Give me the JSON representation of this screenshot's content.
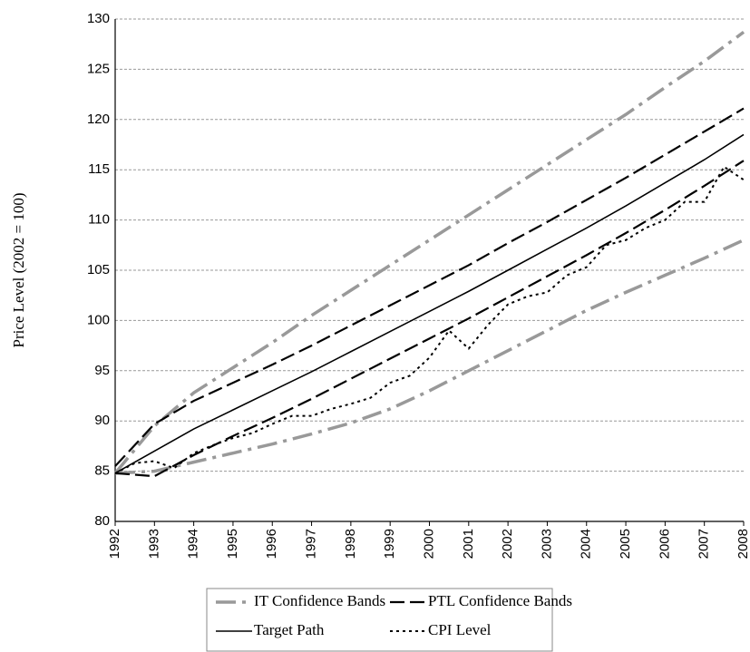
{
  "chart_data": {
    "type": "line",
    "y_label": "Price Level (2002 = 100)",
    "x": [
      1992,
      1993,
      1994,
      1995,
      1996,
      1997,
      1998,
      1999,
      2000,
      2001,
      2002,
      2003,
      2004,
      2005,
      2006,
      2007,
      2008
    ],
    "series": [
      {
        "name": "IT Confidence Bands",
        "color": "#999999",
        "style": "dash-dot",
        "upper": [
          84.8,
          89.5,
          92.8,
          95.3,
          97.8,
          100.5,
          103,
          105.5,
          108,
          110.5,
          113,
          115.5,
          118,
          120.5,
          123.2,
          125.8,
          128.7
        ],
        "lower": [
          84.8,
          85,
          85.9,
          86.8,
          87.7,
          88.7,
          89.8,
          91.2,
          93,
          95,
          97,
          99,
          101,
          102.8,
          104.5,
          106.2,
          108
        ]
      },
      {
        "name": "PTL Confidence Bands",
        "color": "#000000",
        "style": "dash",
        "upper": [
          85.5,
          89.7,
          92,
          93.8,
          95.6,
          97.5,
          99.5,
          101.5,
          103.5,
          105.5,
          107.7,
          109.8,
          112,
          114.2,
          116.5,
          118.8,
          121.1
        ],
        "lower": [
          84.8,
          84.5,
          86.6,
          88.5,
          90.3,
          92.2,
          94.2,
          96.2,
          98.2,
          100.2,
          102.3,
          104.4,
          106.5,
          108.7,
          111,
          113.4,
          115.9
        ]
      },
      {
        "name": "Target Path",
        "color": "#000000",
        "style": "solid",
        "values": [
          84.8,
          87,
          89.2,
          91.1,
          93,
          94.9,
          96.9,
          98.9,
          100.9,
          102.9,
          105,
          107.1,
          109.2,
          111.4,
          113.7,
          116,
          118.5
        ]
      },
      {
        "name": "CPI Level",
        "color": "#000000",
        "style": "dot",
        "x": [
          1992,
          1992.5,
          1993,
          1993.5,
          1994,
          1994.5,
          1995,
          1995.5,
          1996,
          1996.5,
          1997,
          1997.5,
          1998,
          1998.5,
          1999,
          1999.5,
          2000,
          2000.5,
          2001,
          2001.5,
          2002,
          2002.5,
          2003,
          2003.5,
          2004,
          2004.5,
          2005,
          2005.5,
          2006,
          2006.5,
          2007,
          2007.5,
          2008
        ],
        "values": [
          84.8,
          85.8,
          86,
          85.3,
          86.8,
          87.6,
          88.3,
          88.8,
          89.7,
          90.5,
          90.5,
          91.2,
          91.7,
          92.3,
          93.8,
          94.5,
          96.3,
          99,
          97.2,
          99.6,
          101.6,
          102.4,
          102.8,
          104.5,
          105.3,
          107.5,
          108,
          109.2,
          110,
          111.8,
          111.8,
          115.3,
          114
        ]
      }
    ],
    "xlim": [
      1992,
      2008
    ],
    "xticks": [
      1992,
      1993,
      1994,
      1995,
      1996,
      1997,
      1998,
      1999,
      2000,
      2001,
      2002,
      2003,
      2004,
      2005,
      2006,
      2007,
      2008
    ],
    "ylim": [
      80,
      130
    ],
    "yticks": [
      80,
      85,
      90,
      95,
      100,
      105,
      110,
      115,
      120,
      125,
      130
    ],
    "grid": true,
    "legend": "bottom"
  }
}
